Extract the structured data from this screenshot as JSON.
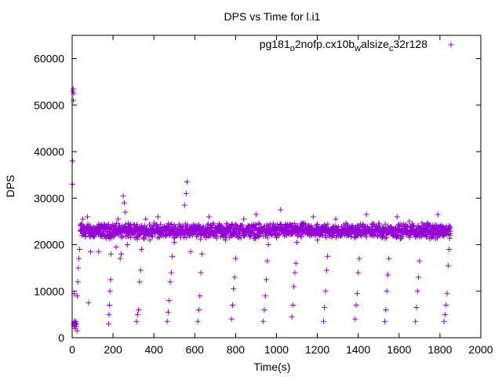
{
  "chart_data": {
    "type": "scatter",
    "title": "DPS vs Time for l.i1",
    "xlabel": "Time(s)",
    "ylabel": "DPS",
    "xlim": [
      0,
      2000
    ],
    "ylim": [
      0,
      65000
    ],
    "xticks": [
      0,
      200,
      400,
      600,
      800,
      1000,
      1200,
      1400,
      1600,
      1800,
      2000
    ],
    "yticks": [
      0,
      10000,
      20000,
      30000,
      40000,
      50000,
      60000
    ],
    "grid": false,
    "legend_position": "top-right",
    "marker": "plus",
    "series": [
      {
        "name": "pg181_o2nofp.cx10b_walsize_c32r128",
        "color": "#9400d3",
        "points": [
          [
            1,
            33000
          ],
          [
            2,
            38000
          ],
          [
            3,
            53000
          ],
          [
            5,
            53500
          ],
          [
            6,
            51000
          ],
          [
            8,
            52500
          ],
          [
            10,
            9500
          ],
          [
            5,
            3000
          ],
          [
            8,
            2500
          ],
          [
            10,
            3500
          ],
          [
            12,
            2800
          ],
          [
            14,
            3200
          ],
          [
            15,
            2000
          ],
          [
            16,
            3000
          ],
          [
            18,
            3500
          ],
          [
            20,
            2500
          ],
          [
            22,
            3000
          ],
          [
            24,
            1500
          ],
          [
            25,
            9000
          ],
          [
            28,
            12000
          ],
          [
            30,
            15000
          ],
          [
            33,
            17000
          ],
          [
            36,
            19000
          ],
          [
            40,
            23000
          ],
          [
            45,
            24500
          ],
          [
            52,
            25500
          ],
          [
            60,
            23000
          ],
          [
            75,
            26000
          ],
          [
            80,
            7500
          ],
          [
            90,
            18500
          ],
          [
            100,
            22000
          ],
          [
            130,
            18500
          ],
          [
            150,
            22500
          ],
          [
            178,
            3000
          ],
          [
            180,
            5000
          ],
          [
            182,
            7000
          ],
          [
            185,
            10000
          ],
          [
            188,
            12500
          ],
          [
            190,
            18000
          ],
          [
            200,
            24000
          ],
          [
            215,
            19500
          ],
          [
            225,
            25500
          ],
          [
            235,
            17000
          ],
          [
            240,
            18000
          ],
          [
            250,
            30500
          ],
          [
            255,
            29000
          ],
          [
            260,
            27000
          ],
          [
            270,
            20000
          ],
          [
            285,
            21500
          ],
          [
            300,
            23000
          ],
          [
            315,
            3500
          ],
          [
            320,
            5000
          ],
          [
            325,
            6000
          ],
          [
            330,
            12000
          ],
          [
            335,
            14500
          ],
          [
            340,
            19000
          ],
          [
            350,
            21500
          ],
          [
            360,
            25500
          ],
          [
            380,
            21000
          ],
          [
            400,
            23500
          ],
          [
            420,
            26000
          ],
          [
            440,
            22000
          ],
          [
            465,
            3500
          ],
          [
            470,
            5500
          ],
          [
            475,
            8000
          ],
          [
            480,
            12000
          ],
          [
            485,
            14000
          ],
          [
            490,
            17500
          ],
          [
            500,
            20500
          ],
          [
            520,
            22500
          ],
          [
            540,
            24000
          ],
          [
            550,
            28500
          ],
          [
            558,
            31000
          ],
          [
            562,
            33500
          ],
          [
            570,
            23000
          ],
          [
            580,
            18500
          ],
          [
            615,
            3500
          ],
          [
            620,
            6000
          ],
          [
            625,
            9000
          ],
          [
            630,
            14000
          ],
          [
            635,
            18000
          ],
          [
            650,
            23500
          ],
          [
            670,
            26000
          ],
          [
            690,
            22000
          ],
          [
            720,
            24500
          ],
          [
            750,
            21000
          ],
          [
            780,
            4000
          ],
          [
            785,
            7000
          ],
          [
            790,
            10500
          ],
          [
            795,
            13000
          ],
          [
            800,
            17000
          ],
          [
            820,
            22000
          ],
          [
            840,
            25500
          ],
          [
            870,
            23000
          ],
          [
            900,
            26500
          ],
          [
            935,
            3500
          ],
          [
            940,
            6000
          ],
          [
            945,
            9000
          ],
          [
            950,
            12500
          ],
          [
            955,
            16500
          ],
          [
            960,
            20000
          ],
          [
            980,
            24000
          ],
          [
            1000,
            21500
          ],
          [
            1020,
            27500
          ],
          [
            1050,
            22000
          ],
          [
            1075,
            4500
          ],
          [
            1080,
            7000
          ],
          [
            1085,
            11000
          ],
          [
            1090,
            14000
          ],
          [
            1095,
            16000
          ],
          [
            1100,
            20500
          ],
          [
            1120,
            24500
          ],
          [
            1150,
            22500
          ],
          [
            1180,
            26000
          ],
          [
            1200,
            21000
          ],
          [
            1230,
            3500
          ],
          [
            1235,
            6500
          ],
          [
            1240,
            10000
          ],
          [
            1245,
            14500
          ],
          [
            1250,
            17500
          ],
          [
            1270,
            23000
          ],
          [
            1290,
            25500
          ],
          [
            1320,
            22000
          ],
          [
            1350,
            24000
          ],
          [
            1385,
            4000
          ],
          [
            1390,
            7000
          ],
          [
            1395,
            9500
          ],
          [
            1400,
            14000
          ],
          [
            1405,
            17000
          ],
          [
            1420,
            22500
          ],
          [
            1440,
            26500
          ],
          [
            1470,
            22000
          ],
          [
            1500,
            24500
          ],
          [
            1530,
            3500
          ],
          [
            1535,
            6000
          ],
          [
            1540,
            10000
          ],
          [
            1545,
            13500
          ],
          [
            1550,
            17000
          ],
          [
            1570,
            23000
          ],
          [
            1590,
            26000
          ],
          [
            1620,
            22500
          ],
          [
            1650,
            25000
          ],
          [
            1680,
            3500
          ],
          [
            1685,
            6500
          ],
          [
            1690,
            10000
          ],
          [
            1695,
            13000
          ],
          [
            1700,
            16500
          ],
          [
            1720,
            22000
          ],
          [
            1740,
            24500
          ],
          [
            1760,
            21500
          ],
          [
            1790,
            26500
          ],
          [
            1800,
            24000
          ],
          [
            1820,
            3500
          ],
          [
            1825,
            5000
          ],
          [
            1830,
            7000
          ],
          [
            1835,
            9500
          ],
          [
            1840,
            15500
          ],
          [
            1845,
            19000
          ],
          [
            1850,
            22000
          ]
        ],
        "dense_band": {
          "x_start": 40,
          "x_end": 1850,
          "y_center": 23000,
          "y_spread": 1800
        }
      }
    ]
  }
}
